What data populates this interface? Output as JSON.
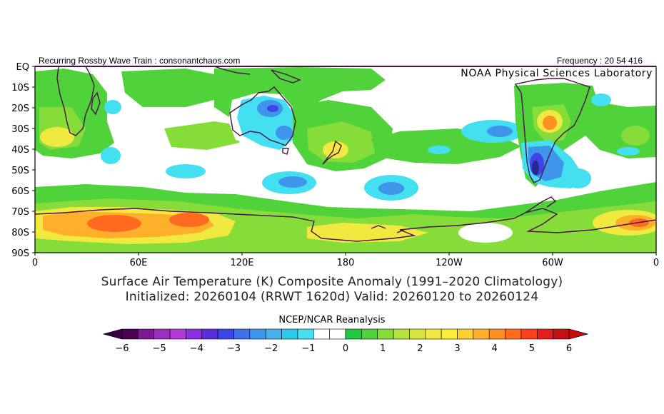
{
  "header": {
    "left_text": "Recurring Rossby Wave Train : consonantchaos.com",
    "right_text": "Frequency : 20 54 416",
    "lab": "NOAA Physical Sciences Laboratory"
  },
  "axes": {
    "y_labels": [
      "EQ",
      "10S",
      "20S",
      "30S",
      "40S",
      "50S",
      "60S",
      "70S",
      "80S",
      "90S"
    ],
    "x_labels": [
      "0",
      "60E",
      "120E",
      "180",
      "120W",
      "60W",
      "0"
    ]
  },
  "caption": {
    "line1": "Surface Air Temperature (K) Composite Anomaly (1991–2020 Climatology)",
    "line2": "Initialized: 20260104 (RRWT 1620d) Valid: 20260120 to 20260124"
  },
  "colorbar": {
    "title": "NCEP/NCAR Reanalysis",
    "ticks": [
      "−6",
      "−5",
      "−4",
      "−3",
      "−2",
      "−1",
      "0",
      "1",
      "2",
      "3",
      "4",
      "5",
      "6"
    ],
    "colors": [
      "#4b0050",
      "#7a1a90",
      "#9b2fbf",
      "#b43ad6",
      "#8c2ee0",
      "#5a2dd8",
      "#3c46e8",
      "#3f70e8",
      "#3f95ea",
      "#46b0ec",
      "#2ec8ec",
      "#44e0f2",
      "#ffffff",
      "#ffffff",
      "#22c840",
      "#4fd23a",
      "#86dc38",
      "#b4e33a",
      "#d6e63c",
      "#f0ea40",
      "#ffec3a",
      "#ffd02c",
      "#ffb02a",
      "#ff9024",
      "#ff6a20",
      "#ff4020",
      "#e81e1e",
      "#c01010"
    ],
    "low_arrow_color": "#3a0048",
    "high_arrow_color": "#cc0a0a"
  },
  "palette": {
    "land_outline": "#4a1046",
    "frame": "#000000",
    "green": "#4fd23a",
    "light_green": "#86dc38",
    "yellow": "#f0ea40",
    "orange": "#ffb02a",
    "red": "#ff6a20",
    "cyan": "#44e0f2",
    "blue": "#3f95ea",
    "dark_blue": "#3c46e8",
    "navy": "#282890"
  }
}
